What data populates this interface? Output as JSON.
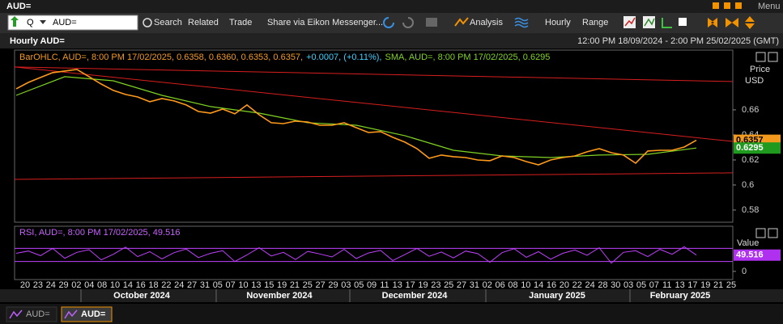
{
  "window": {
    "title": "AUD=",
    "menu": "Menu"
  },
  "toolbar": {
    "search_prefix": "Q",
    "ric": "AUD=",
    "items": [
      "Search",
      "Related",
      "Trade",
      "Share via Eikon Messenger...",
      "Analysis",
      "Hourly",
      "Range"
    ]
  },
  "chart": {
    "title": "Hourly AUD=",
    "date_range": "12:00 PM 18/09/2024 - 2:00 PM 25/02/2025 (GMT)",
    "price_panel": {
      "legend_ohlc": "BarOHLC, AUD=, 8:00 PM 17/02/2025, 0.6358, 0.6360, 0.6353, 0.6357,",
      "legend_change": "+0.0007, (+0.11%),",
      "legend_sma": "SMA, AUD=, 8:00 PM 17/02/2025, 0.6295",
      "axis_label": [
        "Price",
        "USD"
      ],
      "ylim": [
        0.5703,
        0.7077
      ],
      "yticks": [
        0.58,
        0.6,
        0.62,
        0.64,
        0.66
      ],
      "price": {
        "color": "#ff9a1a",
        "values": [
          0.6768,
          0.6819,
          0.6858,
          0.6897,
          0.691,
          0.6923,
          0.6865,
          0.6806,
          0.6755,
          0.6723,
          0.6703,
          0.6665,
          0.669,
          0.6671,
          0.6639,
          0.6587,
          0.6574,
          0.6606,
          0.6568,
          0.6639,
          0.6561,
          0.6497,
          0.649,
          0.651,
          0.6503,
          0.6477,
          0.6477,
          0.6497,
          0.6458,
          0.6419,
          0.6426,
          0.6381,
          0.6342,
          0.629,
          0.6213,
          0.6239,
          0.6226,
          0.6219,
          0.62,
          0.6194,
          0.6232,
          0.6219,
          0.6187,
          0.6161,
          0.62,
          0.6219,
          0.6232,
          0.6265,
          0.629,
          0.6258,
          0.6239,
          0.6174,
          0.6271,
          0.6277,
          0.6277,
          0.6303,
          0.6357
        ]
      },
      "sma": {
        "color": "#7fd321",
        "values": [
          0.6716,
          0.6865,
          0.6832,
          0.6716,
          0.6626,
          0.6574,
          0.6497,
          0.6477,
          0.6394,
          0.6277,
          0.6232,
          0.6219,
          0.6239,
          0.6245,
          0.6295
        ]
      },
      "trend_lines": {
        "color": "#d81e1e",
        "lines": [
          [
            0.6942,
            0.6826
          ],
          [
            0.6942,
            0.6348
          ],
          [
            0.6045,
            0.6097
          ]
        ]
      }
    },
    "rsi_panel": {
      "legend": "RSI, AUD=, 8:00 PM 17/02/2025, 49.516",
      "axis_label": "Value",
      "ylim": [
        -25,
        137.5
      ],
      "yticks": [
        0
      ],
      "levels": [
        30,
        70
      ],
      "color": "#c040ff",
      "values": [
        55,
        62,
        48,
        70,
        40,
        58,
        66,
        35,
        52,
        74,
        45,
        60,
        38,
        57,
        68,
        42,
        55,
        63,
        30,
        50,
        72,
        47,
        58,
        36,
        61,
        53,
        44,
        67,
        39,
        56,
        64,
        33,
        51,
        70,
        46,
        59,
        41,
        62,
        54,
        28,
        57,
        69,
        43,
        60,
        37,
        55,
        65,
        49,
        72,
        25,
        58,
        63,
        45,
        67,
        52,
        75,
        49.516
      ]
    },
    "x_labels": [
      "20",
      "23",
      "24",
      "29",
      "02",
      "04",
      "08",
      "10",
      "14",
      "16",
      "18",
      "22",
      "24",
      "27",
      "31",
      "05",
      "07",
      "10",
      "13",
      "15",
      "19",
      "21",
      "25",
      "27",
      "29",
      "03",
      "05",
      "09",
      "11",
      "13",
      "17",
      "19",
      "23",
      "25",
      "27",
      "31",
      "02",
      "06",
      "08",
      "10",
      "14",
      "16",
      "20",
      "22",
      "24",
      "28",
      "30",
      "03",
      "05",
      "07",
      "11",
      "13",
      "17",
      "19",
      "21",
      "25"
    ],
    "months": [
      "October 2024",
      "November 2024",
      "December 2024",
      "January 2025",
      "February 2025"
    ]
  },
  "tabs": [
    "AUD=",
    "AUD="
  ]
}
